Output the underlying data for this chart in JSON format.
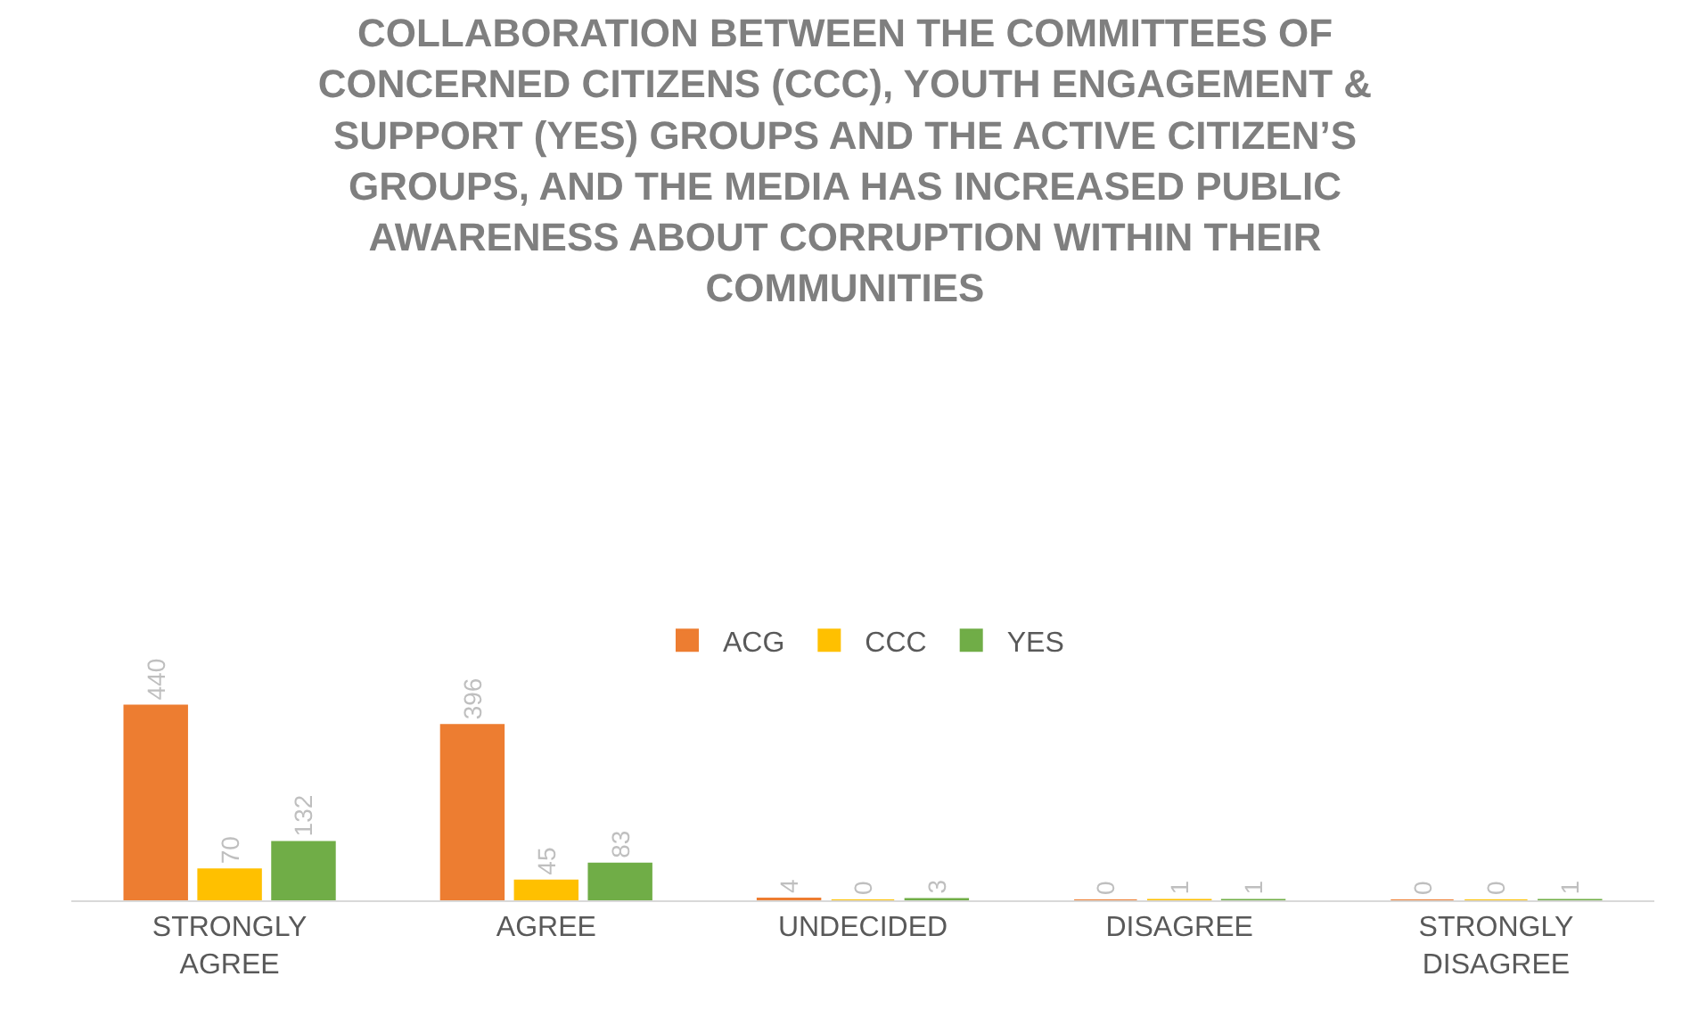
{
  "chart_data": {
    "type": "bar",
    "title": "COLLABORATION BETWEEN THE COMMITTEES OF CONCERNED CITIZENS (CCC), YOUTH ENGAGEMENT & SUPPORT (YES) GROUPS AND THE ACTIVE CITIZEN’S GROUPS, AND THE MEDIA HAS INCREASED PUBLIC AWARENESS ABOUT CORRUPTION WITHIN THEIR COMMUNITIES",
    "categories": [
      "STRONGLY AGREE",
      "AGREE",
      "UNDECIDED",
      "DISAGREE",
      "STRONGLY DISAGREE"
    ],
    "series": [
      {
        "name": "ACG",
        "color": "#ed7d31",
        "values": [
          440,
          396,
          4,
          0,
          0
        ]
      },
      {
        "name": "CCC",
        "color": "#ffc000",
        "values": [
          70,
          45,
          0,
          1,
          0
        ]
      },
      {
        "name": "YES",
        "color": "#70ad47",
        "values": [
          132,
          83,
          3,
          1,
          1
        ]
      }
    ],
    "data_labels": true,
    "legend": "top",
    "tick_labels": "x"
  }
}
